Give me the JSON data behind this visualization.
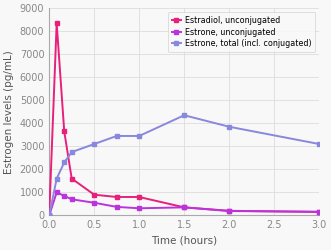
{
  "title": "",
  "xlabel": "Time (hours)",
  "ylabel": "Estrogen levels (pg/mL)",
  "ylim": [
    0,
    9000
  ],
  "xlim": [
    0,
    3.0
  ],
  "yticks": [
    0,
    1000,
    2000,
    3000,
    4000,
    5000,
    6000,
    7000,
    8000,
    9000
  ],
  "xticks": [
    0,
    0.5,
    1,
    1.5,
    2,
    2.5,
    3
  ],
  "series": [
    {
      "label": "Estradiol, unconjugated",
      "color": "#e8207a",
      "x": [
        0,
        0.083,
        0.167,
        0.25,
        0.5,
        0.75,
        1.0,
        1.5,
        2.0,
        3.0
      ],
      "y": [
        0,
        8350,
        3650,
        1600,
        900,
        800,
        800,
        350,
        200,
        150
      ]
    },
    {
      "label": "Estrone, unconjugated",
      "color": "#bb33dd",
      "x": [
        0,
        0.083,
        0.167,
        0.25,
        0.5,
        0.75,
        1.0,
        1.5,
        2.0,
        3.0
      ],
      "y": [
        0,
        1000,
        850,
        700,
        550,
        370,
        310,
        350,
        190,
        160
      ]
    },
    {
      "label": "Estrone, total (incl. conjugated)",
      "color": "#8888dd",
      "x": [
        0,
        0.083,
        0.167,
        0.25,
        0.5,
        0.75,
        1.0,
        1.5,
        2.0,
        3.0
      ],
      "y": [
        0,
        1600,
        2300,
        2750,
        3100,
        3450,
        3450,
        4350,
        3850,
        3100
      ]
    }
  ],
  "background_color": "#f8f8f8",
  "plot_bg_color": "#f8f8f8",
  "grid_color": "#dddddd",
  "marker": "s",
  "markersize": 3.5,
  "linewidth": 1.4,
  "axis_color": "#aaaaaa",
  "tick_color": "#888888",
  "label_fontsize": 7.5,
  "tick_fontsize": 7,
  "legend_fontsize": 5.8
}
